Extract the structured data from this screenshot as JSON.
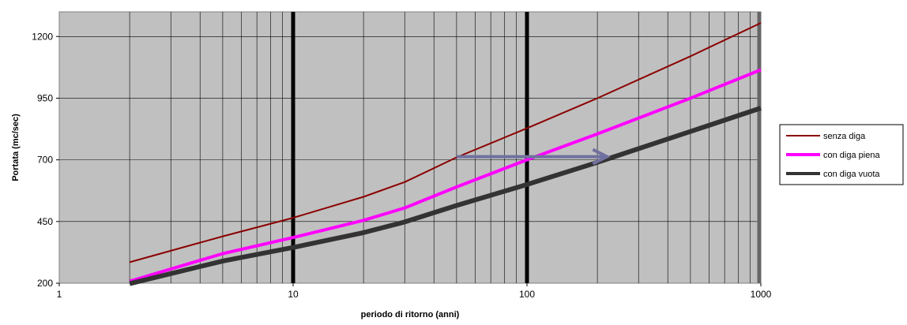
{
  "chart_data": {
    "type": "line",
    "title": "",
    "xlabel": "periodo di ritorno (anni)",
    "ylabel": "Portata (mc/sec)",
    "x_scale": "log",
    "xlim": [
      1,
      1000
    ],
    "ylim": [
      200,
      1300
    ],
    "x_ticks": [
      1,
      10,
      100,
      1000
    ],
    "x_tick_labels": [
      "1",
      "10",
      "100",
      "1000"
    ],
    "y_ticks": [
      200,
      450,
      700,
      950,
      1200
    ],
    "y_tick_labels": [
      "200",
      "450",
      "700",
      "950",
      "1200"
    ],
    "grid": true,
    "plot_background": "#c0c0c0",
    "highlighted_x": [
      10,
      100,
      1000
    ],
    "legend_position": "right",
    "series": [
      {
        "name": "senza diga",
        "color": "#8b0000",
        "x": [
          2,
          5,
          10,
          20,
          30,
          50,
          100,
          200,
          500,
          1000
        ],
        "y": [
          285,
          390,
          465,
          550,
          610,
          710,
          828,
          950,
          1120,
          1255
        ]
      },
      {
        "name": "con diga piena",
        "color": "#ff00ff",
        "x": [
          2,
          5,
          10,
          20,
          30,
          50,
          100,
          200,
          500,
          1000
        ],
        "y": [
          208,
          320,
          385,
          455,
          505,
          590,
          700,
          805,
          950,
          1065
        ]
      },
      {
        "name": "con diga vuota",
        "color": "#333333",
        "x": [
          2,
          5,
          10,
          20,
          30,
          50,
          100,
          200,
          500,
          1000
        ],
        "y": [
          198,
          290,
          345,
          405,
          448,
          515,
          600,
          690,
          815,
          910
        ]
      }
    ],
    "annotations": [
      {
        "type": "arrow",
        "from": [
          50,
          713
        ],
        "to": [
          220,
          713
        ],
        "color": "#7070a0"
      }
    ]
  }
}
